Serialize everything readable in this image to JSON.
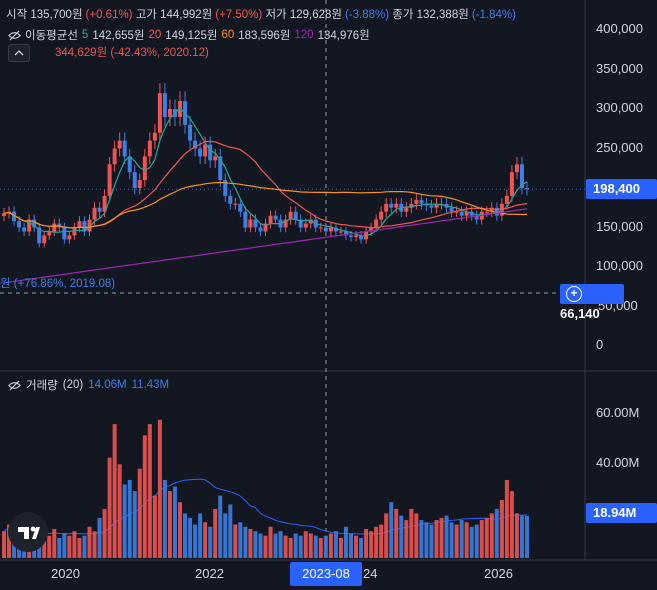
{
  "ohlc": {
    "open_label": "시작",
    "open": "135,700원",
    "open_chg": "(+0.61%)",
    "high_label": "고가",
    "high": "144,992원",
    "high_chg": "(+7.50%)",
    "low_label": "저가",
    "low": "129,628원",
    "low_chg": "(-3.88%)",
    "close_label": "종가",
    "close": "132,388원",
    "close_chg": "(-1.84%)"
  },
  "ma": {
    "label": "이동평균선",
    "p5": "5",
    "v5": "142,655원",
    "p20": "20",
    "v20": "149,125원",
    "p60": "60",
    "v60": "183,596원",
    "p120": "120",
    "v120": "134,976원"
  },
  "annotations": {
    "high_note": "344,629원 (-42.43%, 2020.12)",
    "low_note": "원 (+76.86%, 2019.08)"
  },
  "price_axis": [
    "400,000",
    "350,000",
    "300,000",
    "250,000",
    "200,000",
    "150,000",
    "100,000",
    "50,000",
    "0"
  ],
  "current_price": "198,400",
  "cursor_price": "66,140",
  "volume": {
    "label": "거래량",
    "period": "(20)",
    "v1": "14.06M",
    "v2": "11.43M",
    "last": "18.94M"
  },
  "volume_axis": [
    "60.00M",
    "40.00M"
  ],
  "time_axis": [
    "2020",
    "2022",
    "2023-08",
    "24",
    "2026"
  ],
  "colors": {
    "up": "#f05350",
    "down": "#3c7fe6",
    "ma5": "#26a69a",
    "ma20": "#f05350",
    "ma60": "#f7931a",
    "ma120": "#9c27b0"
  },
  "chart_data": {
    "type": "candlestick",
    "ylim": [
      0,
      420000
    ],
    "candles_close": [
      168000,
      170000,
      158000,
      150000,
      145000,
      160000,
      150000,
      130000,
      140000,
      145000,
      155000,
      150000,
      135000,
      140000,
      150000,
      158000,
      145000,
      160000,
      175000,
      170000,
      190000,
      230000,
      250000,
      260000,
      240000,
      220000,
      200000,
      210000,
      240000,
      260000,
      270000,
      320000,
      290000,
      300000,
      290000,
      310000,
      280000,
      260000,
      250000,
      240000,
      255000,
      235000,
      240000,
      210000,
      190000,
      180000,
      180000,
      170000,
      150000,
      160000,
      150000,
      145000,
      155000,
      165000,
      160000,
      150000,
      160000,
      170000,
      160000,
      150000,
      155000,
      160000,
      150000,
      150000,
      145000,
      150000,
      145000,
      145000,
      140000,
      138000,
      140000,
      135000,
      145000,
      150000,
      160000,
      170000,
      180000,
      175000,
      180000,
      170000,
      175000,
      180000,
      185000,
      180000,
      178000,
      175000,
      180000,
      180000,
      175000,
      170000,
      170000,
      165000,
      170000,
      165000,
      160000,
      170000,
      170000,
      175000,
      165000,
      180000,
      190000,
      220000,
      230000,
      200000,
      198400
    ],
    "volume_values": [
      12,
      15,
      9,
      14,
      11,
      10,
      12,
      9,
      8,
      10,
      13,
      9,
      11,
      10,
      12,
      9,
      10,
      14,
      12,
      18,
      22,
      45,
      60,
      42,
      33,
      35,
      30,
      40,
      55,
      60,
      28,
      62,
      35,
      30,
      32,
      25,
      20,
      18,
      15,
      20,
      16,
      14,
      22,
      28,
      20,
      24,
      15,
      16,
      14,
      13,
      12,
      11,
      10,
      14,
      11,
      12,
      10,
      9,
      11,
      10,
      12,
      11,
      10,
      9,
      10,
      11,
      12,
      9,
      14,
      11,
      10,
      9,
      13,
      12,
      14,
      15,
      20,
      25,
      22,
      19,
      17,
      22,
      20,
      17,
      16,
      15,
      17,
      18,
      19,
      16,
      15,
      17,
      16,
      14,
      15,
      17,
      18,
      20,
      22,
      26,
      35,
      30,
      20,
      19,
      18.94
    ]
  }
}
